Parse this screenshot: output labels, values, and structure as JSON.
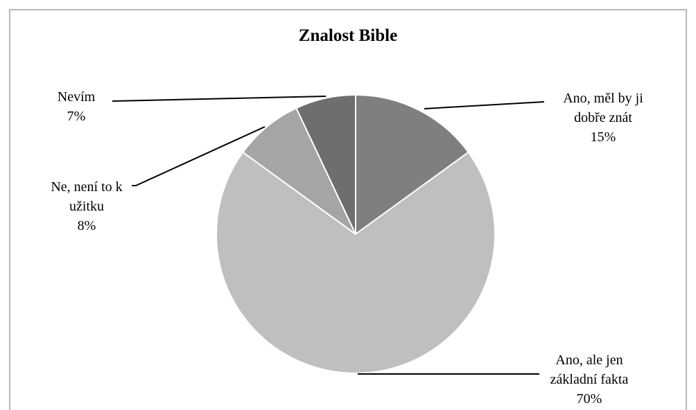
{
  "chart_data": {
    "type": "pie",
    "title": "Znalost Bible",
    "categories": [
      "Ano, měl by ji dobře znát",
      "Ano, ale jen základní fakta",
      "Ne, není to k užitku",
      "Nevím"
    ],
    "values": [
      15,
      70,
      8,
      7
    ],
    "value_labels": [
      "15%",
      "70%",
      "8%",
      "7%"
    ],
    "colors": [
      "#7f7f7f",
      "#bfbfbf",
      "#a5a5a5",
      "#6e6e6e"
    ]
  }
}
